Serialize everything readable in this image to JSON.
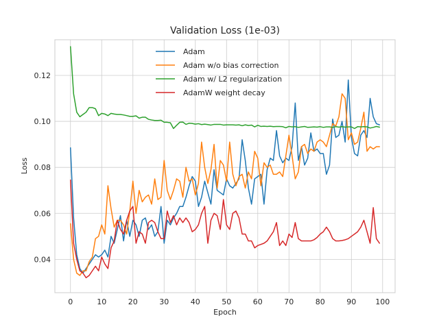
{
  "chart_data": {
    "type": "line",
    "title": "Validation Loss (1e-03)",
    "xlabel": "Epoch",
    "ylabel": "Loss",
    "xlim": [
      -5,
      104
    ],
    "ylim": [
      0.0255,
      0.1355
    ],
    "xticks": [
      0,
      10,
      20,
      30,
      40,
      50,
      60,
      70,
      80,
      90,
      100
    ],
    "yticks": [
      0.04,
      0.06,
      0.08,
      0.1,
      0.12
    ],
    "ytick_labels": [
      "0.04",
      "0.06",
      "0.08",
      "0.10",
      "0.12"
    ],
    "grid": true,
    "legend_position": "top-center",
    "x": [
      0,
      1,
      2,
      3,
      4,
      5,
      6,
      7,
      8,
      9,
      10,
      11,
      12,
      13,
      14,
      15,
      16,
      17,
      18,
      19,
      20,
      21,
      22,
      23,
      24,
      25,
      26,
      27,
      28,
      29,
      30,
      31,
      32,
      33,
      34,
      35,
      36,
      37,
      38,
      39,
      40,
      41,
      42,
      43,
      44,
      45,
      46,
      47,
      48,
      49,
      50,
      51,
      52,
      53,
      54,
      55,
      56,
      57,
      58,
      59,
      60,
      61,
      62,
      63,
      64,
      65,
      66,
      67,
      68,
      69,
      70,
      71,
      72,
      73,
      74,
      75,
      76,
      77,
      78,
      79,
      80,
      81,
      82,
      83,
      84,
      85,
      86,
      87,
      88,
      89,
      90,
      91,
      92,
      93,
      94,
      95,
      96,
      97,
      98,
      99
    ],
    "series": [
      {
        "name": "Adam",
        "color": "#1f77b4",
        "values": [
          0.0885,
          0.058,
          0.042,
          0.036,
          0.034,
          0.036,
          0.038,
          0.04,
          0.042,
          0.041,
          0.042,
          0.044,
          0.041,
          0.05,
          0.047,
          0.053,
          0.059,
          0.048,
          0.057,
          0.05,
          0.057,
          0.055,
          0.05,
          0.057,
          0.058,
          0.053,
          0.055,
          0.05,
          0.052,
          0.063,
          0.047,
          0.057,
          0.055,
          0.058,
          0.06,
          0.063,
          0.063,
          0.067,
          0.072,
          0.076,
          0.074,
          0.063,
          0.067,
          0.074,
          0.069,
          0.064,
          0.079,
          0.07,
          0.069,
          0.068,
          0.075,
          0.072,
          0.071,
          0.073,
          0.075,
          0.092,
          0.083,
          0.071,
          0.064,
          0.075,
          0.076,
          0.077,
          0.064,
          0.079,
          0.084,
          0.083,
          0.096,
          0.085,
          0.082,
          0.084,
          0.083,
          0.089,
          0.108,
          0.083,
          0.089,
          0.081,
          0.084,
          0.095,
          0.087,
          0.088,
          0.086,
          0.086,
          0.077,
          0.081,
          0.101,
          0.093,
          0.094,
          0.1,
          0.091,
          0.118,
          0.093,
          0.086,
          0.085,
          0.094,
          0.096,
          0.093,
          0.11,
          0.102,
          0.099,
          0.0985
        ]
      },
      {
        "name": "Adam w/o bias correction",
        "color": "#ff7f0e",
        "values": [
          0.0555,
          0.04,
          0.034,
          0.033,
          0.035,
          0.035,
          0.039,
          0.041,
          0.049,
          0.05,
          0.055,
          0.051,
          0.072,
          0.062,
          0.054,
          0.057,
          0.057,
          0.055,
          0.051,
          0.061,
          0.074,
          0.06,
          0.07,
          0.065,
          0.067,
          0.068,
          0.064,
          0.075,
          0.066,
          0.067,
          0.083,
          0.07,
          0.066,
          0.07,
          0.075,
          0.074,
          0.067,
          0.08,
          0.074,
          0.075,
          0.068,
          0.073,
          0.091,
          0.08,
          0.073,
          0.079,
          0.09,
          0.071,
          0.083,
          0.081,
          0.074,
          0.091,
          0.077,
          0.072,
          0.076,
          0.077,
          0.071,
          0.078,
          0.075,
          0.087,
          0.084,
          0.072,
          0.082,
          0.08,
          0.081,
          0.077,
          0.077,
          0.078,
          0.076,
          0.085,
          0.094,
          0.085,
          0.075,
          0.078,
          0.089,
          0.09,
          0.086,
          0.088,
          0.087,
          0.091,
          0.092,
          0.091,
          0.089,
          0.094,
          0.099,
          0.098,
          0.102,
          0.112,
          0.11,
          0.092,
          0.095,
          0.09,
          0.091,
          0.097,
          0.104,
          0.087,
          0.089,
          0.088,
          0.089,
          0.089
        ]
      },
      {
        "name": "Adam w/ L2 regularization",
        "color": "#2ca02c",
        "values": [
          0.1325,
          0.112,
          0.104,
          0.102,
          0.103,
          0.104,
          0.106,
          0.106,
          0.1055,
          0.1025,
          0.1035,
          0.1032,
          0.1025,
          0.1035,
          0.1032,
          0.103,
          0.103,
          0.1028,
          0.1025,
          0.1022,
          0.1022,
          0.1024,
          0.1014,
          0.1018,
          0.1018,
          0.1009,
          0.1006,
          0.1004,
          0.1004,
          0.1005,
          0.0996,
          0.0996,
          0.0994,
          0.0969,
          0.0983,
          0.0996,
          0.0997,
          0.0987,
          0.0992,
          0.0991,
          0.0988,
          0.099,
          0.0986,
          0.0988,
          0.0986,
          0.0984,
          0.0987,
          0.0987,
          0.0987,
          0.0984,
          0.0985,
          0.0985,
          0.0985,
          0.0984,
          0.0985,
          0.0981,
          0.0985,
          0.0982,
          0.0984,
          0.0976,
          0.0983,
          0.0978,
          0.0979,
          0.0978,
          0.0979,
          0.0977,
          0.0978,
          0.0978,
          0.0977,
          0.0972,
          0.0978,
          0.0976,
          0.0977,
          0.0974,
          0.0976,
          0.0978,
          0.0974,
          0.0975,
          0.0976,
          0.0975,
          0.0977,
          0.0974,
          0.0976,
          0.0976,
          0.0974,
          0.0977,
          0.0975,
          0.0977,
          0.0975,
          0.0976,
          0.0976,
          0.0969,
          0.0977,
          0.0976,
          0.0977,
          0.0976,
          0.0971,
          0.0974,
          0.0978,
          0.0975
        ]
      },
      {
        "name": "AdamW weight decay",
        "color": "#d62728",
        "values": [
          0.0745,
          0.047,
          0.04,
          0.035,
          0.034,
          0.032,
          0.033,
          0.035,
          0.037,
          0.035,
          0.041,
          0.038,
          0.036,
          0.045,
          0.048,
          0.057,
          0.053,
          0.051,
          0.057,
          0.061,
          0.063,
          0.047,
          0.052,
          0.051,
          0.047,
          0.056,
          0.057,
          0.056,
          0.052,
          0.049,
          0.049,
          0.061,
          0.056,
          0.059,
          0.055,
          0.058,
          0.056,
          0.058,
          0.056,
          0.052,
          0.053,
          0.055,
          0.06,
          0.063,
          0.047,
          0.057,
          0.06,
          0.059,
          0.053,
          0.066,
          0.055,
          0.053,
          0.06,
          0.061,
          0.058,
          0.051,
          0.051,
          0.048,
          0.048,
          0.045,
          0.046,
          0.0465,
          0.047,
          0.048,
          0.05,
          0.052,
          0.056,
          0.046,
          0.048,
          0.046,
          0.051,
          0.0495,
          0.056,
          0.049,
          0.048,
          0.048,
          0.048,
          0.048,
          0.0485,
          0.0495,
          0.051,
          0.052,
          0.054,
          0.052,
          0.049,
          0.048,
          0.048,
          0.0482,
          0.0485,
          0.049,
          0.05,
          0.051,
          0.052,
          0.054,
          0.057,
          0.052,
          0.047,
          0.0625,
          0.049,
          0.047
        ]
      }
    ]
  }
}
